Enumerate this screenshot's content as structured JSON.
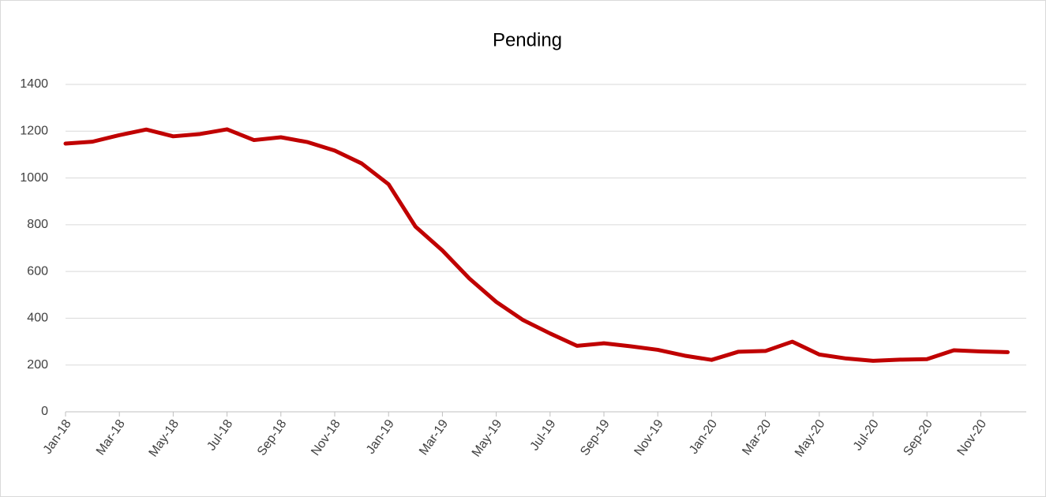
{
  "chart_data": {
    "type": "line",
    "title": "Pending",
    "categories": [
      "Jan-18",
      null,
      "Mar-18",
      null,
      "May-18",
      null,
      "Jul-18",
      null,
      "Sep-18",
      null,
      "Nov-18",
      null,
      "Jan-19",
      null,
      "Mar-19",
      null,
      "May-19",
      null,
      "Jul-19",
      null,
      "Sep-19",
      null,
      "Nov-19",
      null,
      "Jan-20",
      null,
      "Mar-20",
      null,
      "May-20",
      null,
      "Jul-20",
      null,
      "Sep-20",
      null,
      "Nov-20",
      null
    ],
    "series": [
      {
        "name": "Pending",
        "color": "#c00000",
        "values": [
          1147,
          1155,
          1183,
          1207,
          1178,
          1188,
          1208,
          1162,
          1174,
          1153,
          1117,
          1062,
          973,
          792,
          690,
          570,
          470,
          392,
          335,
          282,
          293,
          280,
          265,
          240,
          222,
          257,
          260,
          300,
          245,
          228,
          218,
          223,
          225,
          263,
          258,
          255
        ]
      }
    ],
    "ylim": [
      0,
      1400
    ],
    "yticks": [
      0,
      200,
      400,
      600,
      800,
      1000,
      1200,
      1400
    ],
    "grid": true
  }
}
